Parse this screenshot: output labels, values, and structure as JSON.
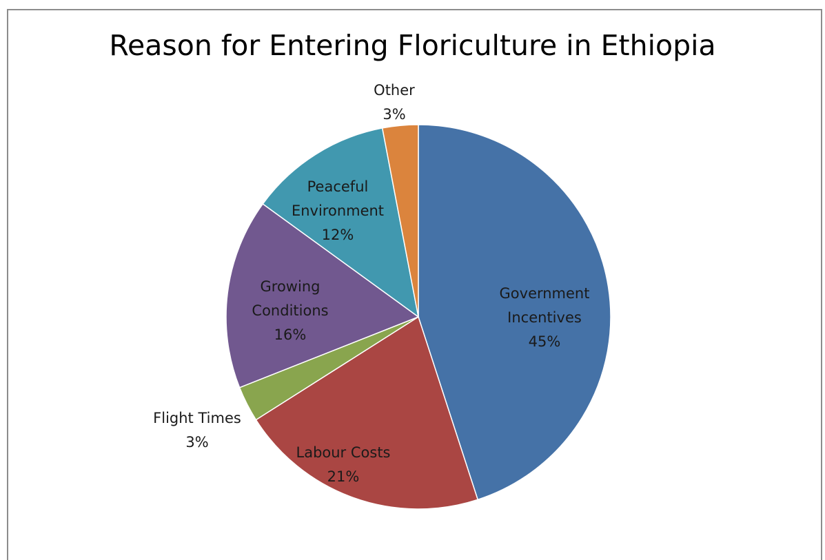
{
  "chart_data": {
    "type": "pie",
    "title": "Reason for Entering Floriculture in Ethiopia",
    "slices": [
      {
        "name": "Government Incentives",
        "label_lines": [
          "Government",
          "Incentives"
        ],
        "value": 45,
        "value_label": "45%",
        "color": "#4572A7"
      },
      {
        "name": "Labour Costs",
        "label_lines": [
          "Labour Costs"
        ],
        "value": 21,
        "value_label": "21%",
        "color": "#AA4643"
      },
      {
        "name": "Flight Times",
        "label_lines": [
          "Flight Times"
        ],
        "value": 3,
        "value_label": "3%",
        "color": "#89A54E"
      },
      {
        "name": "Growing Conditions",
        "label_lines": [
          "Growing",
          "Conditions"
        ],
        "value": 16,
        "value_label": "16%",
        "color": "#71588F"
      },
      {
        "name": "Peaceful Environment",
        "label_lines": [
          "Peaceful",
          "Environment"
        ],
        "value": 12,
        "value_label": "12%",
        "color": "#4198AF"
      },
      {
        "name": "Other",
        "label_lines": [
          "Other"
        ],
        "value": 3,
        "value_label": "3%",
        "color": "#DB843D"
      }
    ],
    "start_angle": "12 o'clock",
    "direction": "clockwise",
    "legend": "none",
    "label_placement": "inside slices except small slices labelled outside"
  }
}
